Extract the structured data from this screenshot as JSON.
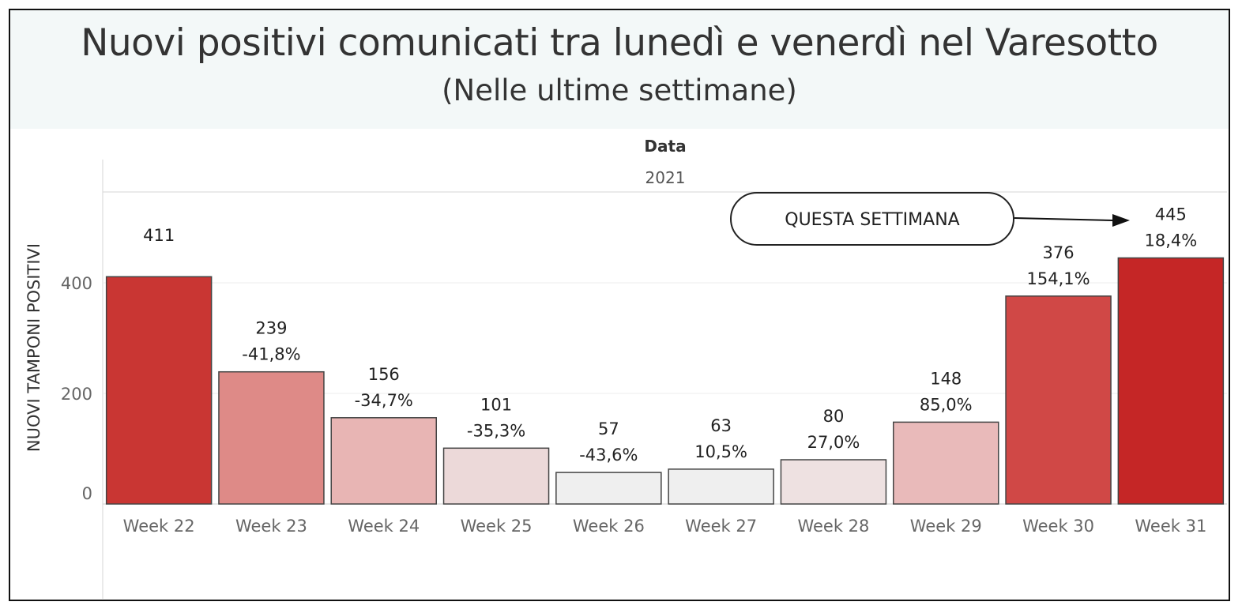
{
  "header": {
    "title": "Nuovi positivi comunicati tra lunedì e venerdì nel Varesotto",
    "subtitle": "(Nelle ultime settimane)"
  },
  "column_header": {
    "label": "Data",
    "year": "2021"
  },
  "annotation": {
    "label": "QUESTA SETTIMANA",
    "target": "Week 31"
  },
  "chart_data": {
    "type": "bar",
    "title": "Nuovi positivi comunicati tra lunedì e venerdì nel Varesotto",
    "subtitle": "(Nelle ultime settimane)",
    "xlabel": "",
    "ylabel": "NUOVI TAMPONI POSITIVI",
    "ylim": [
      0,
      570
    ],
    "yticks": [
      0,
      200,
      400
    ],
    "grid": true,
    "categories": [
      "Week 22",
      "Week 23",
      "Week 24",
      "Week 25",
      "Week 26",
      "Week 27",
      "Week 28",
      "Week 29",
      "Week 30",
      "Week 31"
    ],
    "values": [
      411,
      239,
      156,
      101,
      57,
      63,
      80,
      148,
      376,
      445
    ],
    "pct_change": [
      "",
      "-41,8%",
      "-34,7%",
      "-35,3%",
      "-43,6%",
      "10,5%",
      "27,0%",
      "85,0%",
      "154,1%",
      "18,4%"
    ],
    "colors": [
      "#c93633",
      "#de8a87",
      "#e8b5b4",
      "#ecd9d9",
      "#efefef",
      "#efefef",
      "#eee1e1",
      "#e9baba",
      "#d04846",
      "#c52626"
    ]
  }
}
